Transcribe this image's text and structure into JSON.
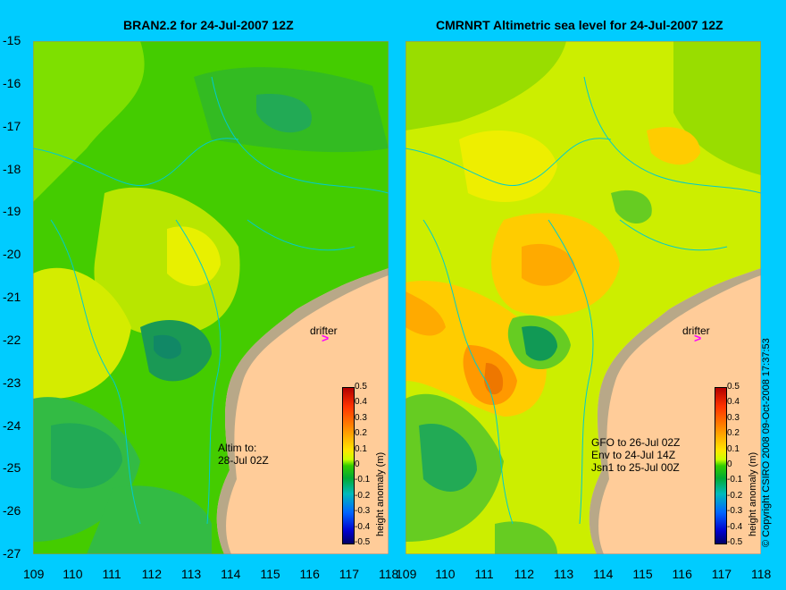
{
  "titles": {
    "left": "BRAN2.2 for 24-Jul-2007 12Z",
    "right": "CMRNRT Altimetric sea level  for 24-Jul-2007 12Z"
  },
  "y_ticks": [
    "-15",
    "-16",
    "-17",
    "-18",
    "-19",
    "-20",
    "-21",
    "-22",
    "-23",
    "-24",
    "-25",
    "-26",
    "-27"
  ],
  "x_ticks_left": [
    "109",
    "110",
    "111",
    "112",
    "113",
    "114",
    "115",
    "116",
    "117",
    "118"
  ],
  "x_ticks_right": [
    "109",
    "110",
    "111",
    "112",
    "113",
    "114",
    "115",
    "116",
    "117",
    "118"
  ],
  "drifter_label": "drifter",
  "drifter_arrow": ">",
  "left_notes": [
    "Altim to:",
    "28-Jul 02Z"
  ],
  "right_notes": [
    "GFO to 26-Jul 02Z",
    "Env to 24-Jul 14Z",
    "Jsn1 to 25-Jul 00Z"
  ],
  "colorbar": {
    "title": "height anomaly (m)",
    "ticks": [
      "0.5",
      "0.4",
      "0.3",
      "0.2",
      "0.1",
      "0",
      "-0.1",
      "-0.2",
      "-0.3",
      "-0.4",
      "-0.5"
    ]
  },
  "copyright": "© Copyright CSIRO 2008   09-Oct-2008 17:37:53",
  "colors": {
    "background": "#00ccff",
    "land": "#ffcc99",
    "coast_shelf": "#b8a888",
    "drifter": "#ff00ff"
  }
}
